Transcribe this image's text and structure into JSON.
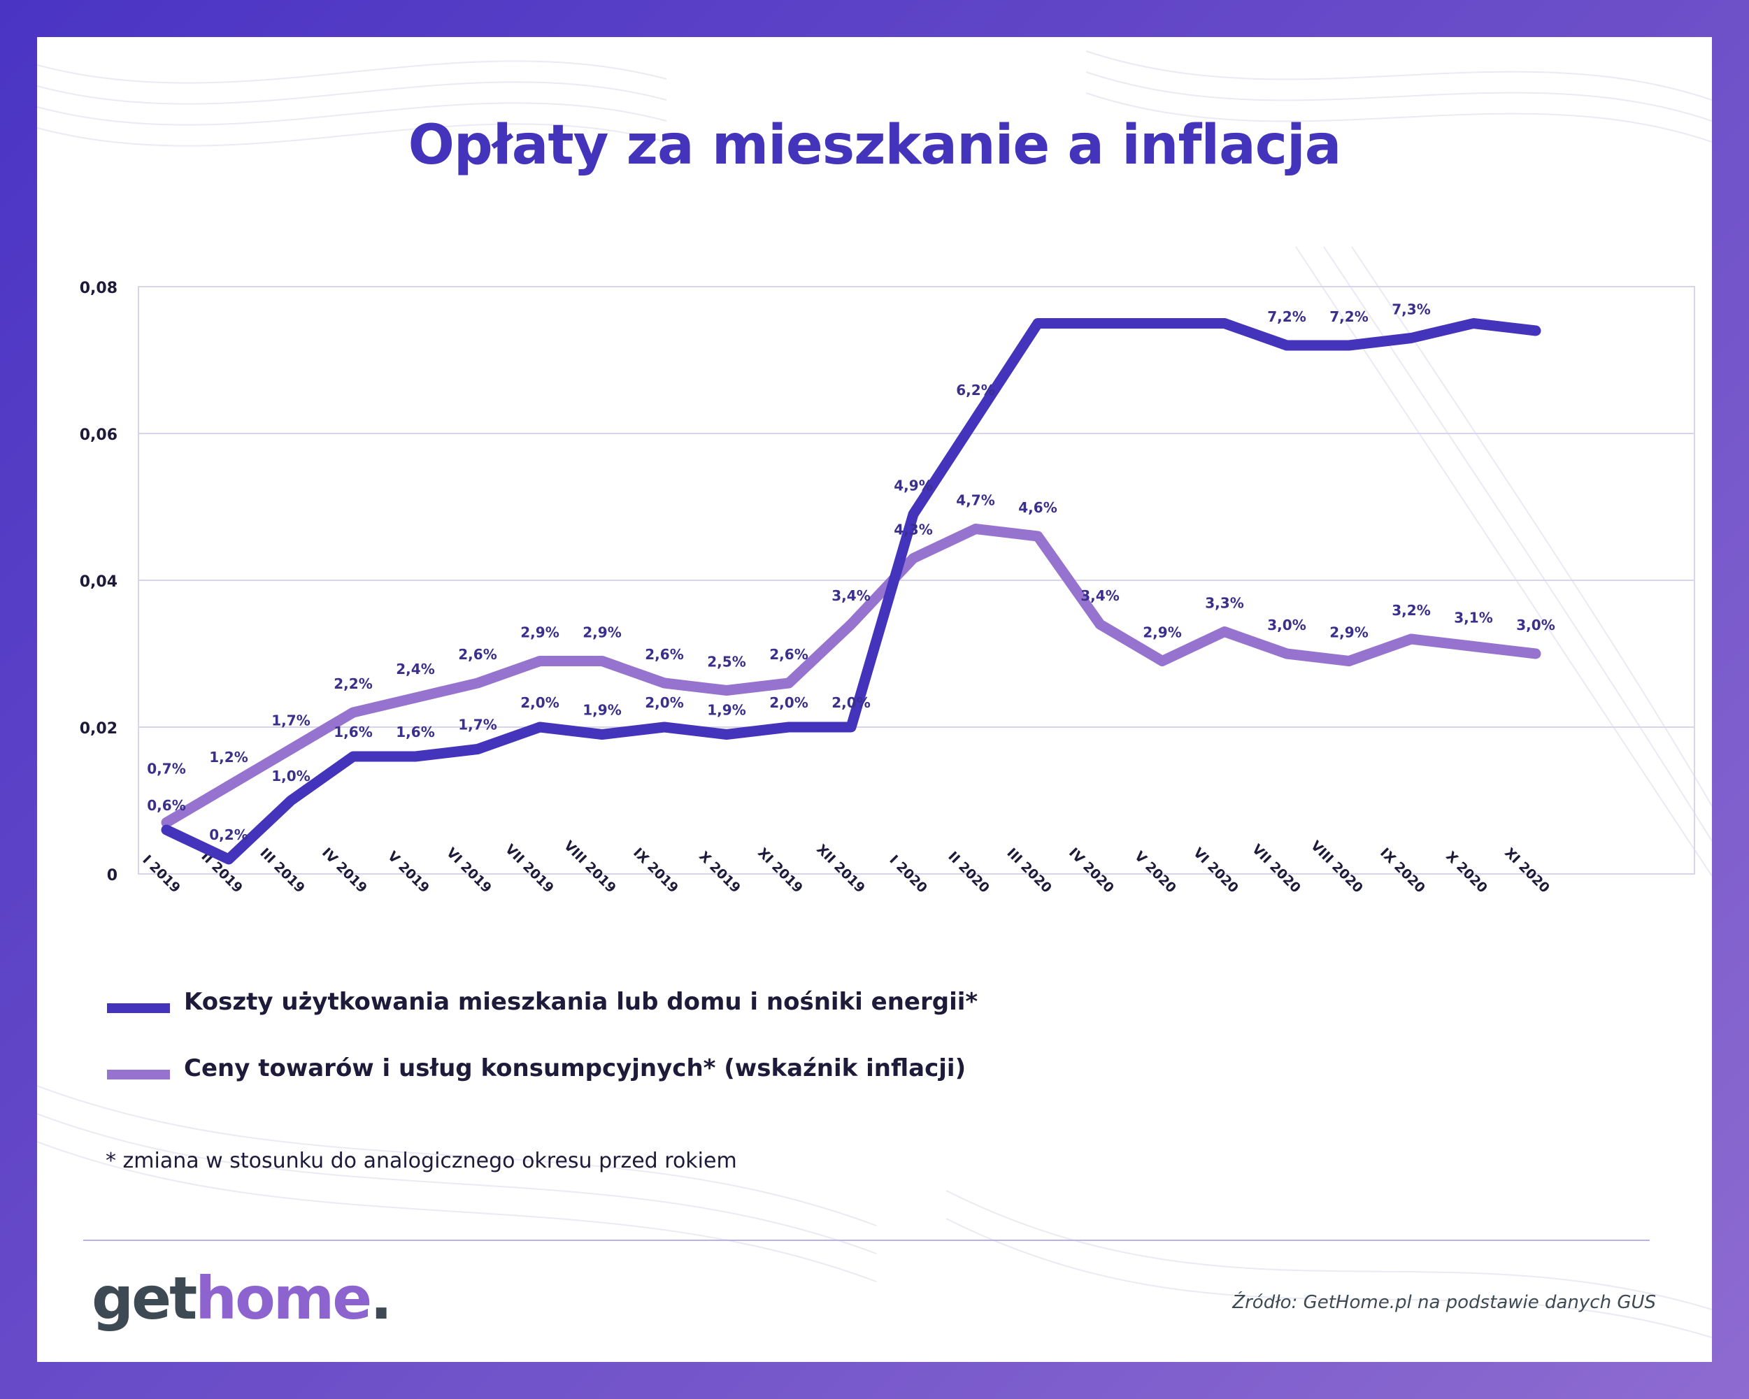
{
  "title": "Opłaty za mieszkanie a inflacja",
  "colors": {
    "series1": "#4433bb",
    "series2": "#9573cf",
    "label": "#3a2f8c",
    "grid": "#d8d4ee",
    "frame": "#5a3fc6"
  },
  "legend": {
    "item1": "Koszty użytkowania mieszkania lub domu i nośniki energii*",
    "item2": "Ceny towarów i usług konsumpcyjnych* (wskaźnik inflacji)"
  },
  "footnote": "* zmiana w stosunku do analogicznego okresu przed rokiem",
  "logo": {
    "part1": "get",
    "part2": "home",
    "part3": "."
  },
  "source": "Źródło: GetHome.pl na podstawie danych GUS",
  "chart_data": {
    "type": "line",
    "title": "",
    "xlabel": "",
    "ylabel": "",
    "ylim": [
      0,
      0.08
    ],
    "yticks": [
      0,
      0.02,
      0.04,
      0.06,
      0.08
    ],
    "ytick_labels": [
      "0",
      "0,02",
      "0,04",
      "0,06",
      "0,08"
    ],
    "grid": true,
    "legend_position": "bottom-left",
    "categories": [
      "I 2019",
      "II 2019",
      "III 2019",
      "IV 2019",
      "V 2019",
      "VI 2019",
      "VII 2019",
      "VIII 2019",
      "IX 2019",
      "X 2019",
      "XI 2019",
      "XII 2019",
      "I 2020",
      "II 2020",
      "III 2020",
      "IV 2020",
      "V 2020",
      "VI 2020",
      "VII 2020",
      "VIII 2020",
      "IX 2020",
      "X 2020",
      "XI 2020"
    ],
    "series": [
      {
        "name": "Koszty użytkowania mieszkania lub domu i nośniki energii*",
        "values": [
          0.006,
          0.002,
          0.01,
          0.016,
          0.016,
          0.017,
          0.02,
          0.019,
          0.02,
          0.019,
          0.02,
          0.02,
          0.049,
          0.062,
          0.075,
          0.075,
          0.075,
          0.075,
          0.072,
          0.072,
          0.073,
          0.075,
          0.074
        ],
        "labels": [
          "0,6%",
          "0,2%",
          "1,0%",
          "1,6%",
          "1,6%",
          "1,7%",
          "2,0%",
          "1,9%",
          "2,0%",
          "1,9%",
          "2,0%",
          "2,0%",
          "4,9%",
          "6,2%",
          "",
          "",
          "",
          "",
          "7,2%",
          "7,2%",
          "7,3%",
          "",
          ""
        ]
      },
      {
        "name": "Ceny towarów i usług konsumpcyjnych* (wskaźnik inflacji)",
        "values": [
          0.007,
          0.012,
          0.017,
          0.022,
          0.024,
          0.026,
          0.029,
          0.029,
          0.026,
          0.025,
          0.026,
          0.034,
          0.043,
          0.047,
          0.046,
          0.034,
          0.029,
          0.033,
          0.03,
          0.029,
          0.032,
          0.031,
          0.03
        ],
        "labels": [
          "0,7%",
          "1,2%",
          "1,7%",
          "2,2%",
          "2,4%",
          "2,6%",
          "2,9%",
          "2,9%",
          "2,6%",
          "2,5%",
          "2,6%",
          "3,4%",
          "4,3%",
          "4,7%",
          "4,6%",
          "3,4%",
          "2,9%",
          "3,3%",
          "3,0%",
          "2,9%",
          "3,2%",
          "3,1%",
          "3,0%"
        ]
      }
    ]
  }
}
